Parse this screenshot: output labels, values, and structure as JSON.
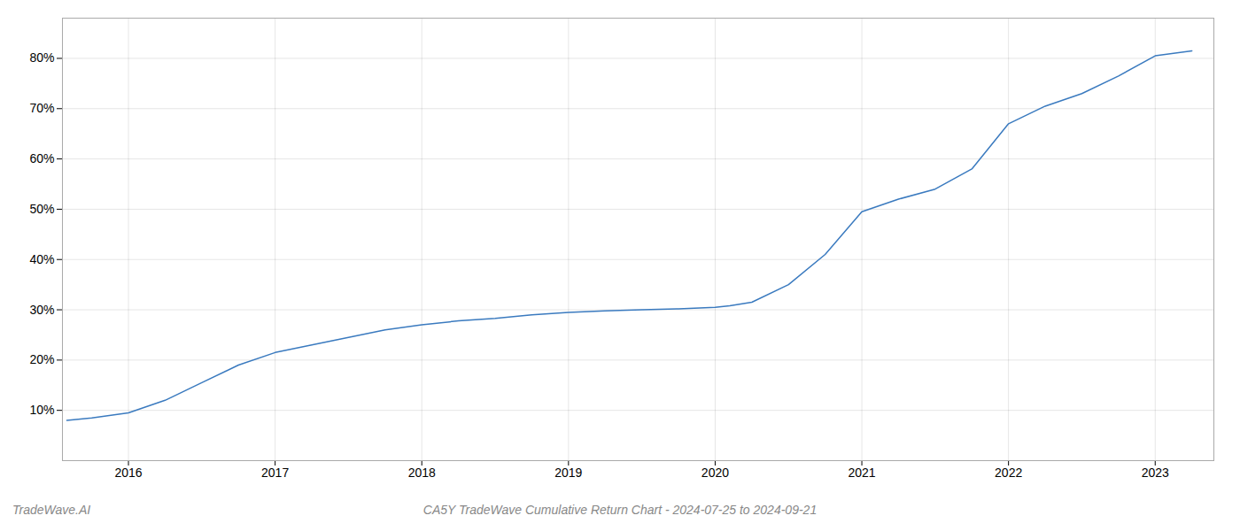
{
  "chart_data": {
    "type": "line",
    "title": "CA5Y TradeWave Cumulative Return Chart - 2024-07-25 to 2024-09-21",
    "annotations": [
      "TradeWave.AI"
    ],
    "x": [
      2015.58,
      2015.75,
      2016.0,
      2016.25,
      2016.5,
      2016.75,
      2017.0,
      2017.25,
      2017.5,
      2017.75,
      2018.0,
      2018.25,
      2018.5,
      2018.75,
      2019.0,
      2019.25,
      2019.5,
      2019.75,
      2020.0,
      2020.1,
      2020.25,
      2020.5,
      2020.75,
      2021.0,
      2021.25,
      2021.5,
      2021.75,
      2022.0,
      2022.25,
      2022.5,
      2022.75,
      2023.0,
      2023.25
    ],
    "values": [
      8.0,
      8.5,
      9.5,
      12.0,
      15.5,
      19.0,
      21.5,
      23.0,
      24.5,
      26.0,
      27.0,
      27.8,
      28.3,
      29.0,
      29.5,
      29.8,
      30.0,
      30.2,
      30.5,
      30.8,
      31.5,
      35.0,
      41.0,
      49.5,
      52.0,
      54.0,
      58.0,
      67.0,
      70.5,
      73.0,
      76.5,
      80.5,
      81.5
    ],
    "color": "#3a7abf",
    "xlim": [
      2015.55,
      2023.4
    ],
    "ylim": [
      0,
      88
    ],
    "xticks": [
      2016,
      2017,
      2018,
      2019,
      2020,
      2021,
      2022,
      2023
    ],
    "yticks": [
      {
        "value": 10,
        "label": "10%"
      },
      {
        "value": 20,
        "label": "20%"
      },
      {
        "value": 30,
        "label": "30%"
      },
      {
        "value": 40,
        "label": "40%"
      },
      {
        "value": 50,
        "label": "50%"
      },
      {
        "value": 60,
        "label": "60%"
      },
      {
        "value": 70,
        "label": "70%"
      },
      {
        "value": 80,
        "label": "80%"
      }
    ],
    "grid": true
  }
}
